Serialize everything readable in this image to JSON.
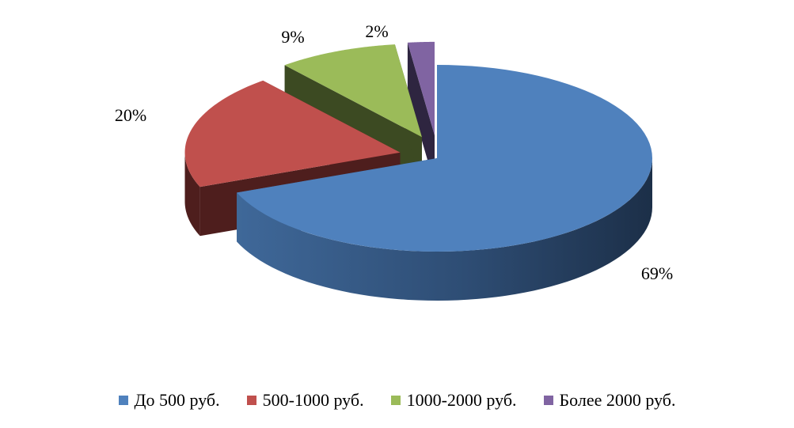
{
  "chart_data": {
    "type": "pie",
    "variant": "3d-exploded",
    "legend_position": "bottom",
    "slices": [
      {
        "name": "До 500 руб.",
        "value": 69,
        "label": "69%",
        "color": "#4F81BD"
      },
      {
        "name": "500-1000 руб.",
        "value": 20,
        "label": "20%",
        "color": "#C0504D"
      },
      {
        "name": "1000-2000 руб.",
        "value": 9,
        "label": "9%",
        "color": "#9BBB59"
      },
      {
        "name": "Более 2000 руб.",
        "value": 2,
        "label": "2%",
        "color": "#8064A2"
      }
    ]
  }
}
